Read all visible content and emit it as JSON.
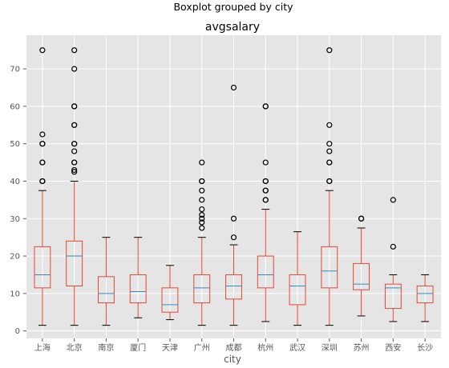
{
  "chart_data": {
    "type": "boxplot",
    "suptitle": "Boxplot grouped by city",
    "title": "avgsalary",
    "xlabel": "city",
    "ylabel": "",
    "ylim": [
      -2,
      79
    ],
    "yticks": [
      0,
      10,
      20,
      30,
      40,
      50,
      60,
      70
    ],
    "grid": true,
    "colors": {
      "background": "#e5e5e5",
      "grid": "#ffffff",
      "box": "#e24a33",
      "median": "#348abd",
      "whisker_cap": "#000000",
      "flier": "#000000",
      "tick_text": "#555555"
    },
    "categories": [
      "上海",
      "北京",
      "南京",
      "厦门",
      "天津",
      "广州",
      "成都",
      "杭州",
      "武汉",
      "深圳",
      "苏州",
      "西安",
      "长沙"
    ],
    "boxes": [
      {
        "city": "上海",
        "whislo": 1.5,
        "q1": 11.5,
        "med": 15,
        "q3": 22.5,
        "whishi": 37.5,
        "fliers": [
          40,
          40,
          45,
          45,
          50,
          50,
          52.5,
          75
        ]
      },
      {
        "city": "北京",
        "whislo": 1.5,
        "q1": 12,
        "med": 20,
        "q3": 24,
        "whishi": 40,
        "fliers": [
          42.5,
          43,
          45,
          45,
          48,
          50,
          50,
          55,
          55,
          60,
          60,
          70,
          75
        ]
      },
      {
        "city": "南京",
        "whislo": 1.5,
        "q1": 7.5,
        "med": 10,
        "q3": 14.5,
        "whishi": 25,
        "fliers": []
      },
      {
        "city": "厦门",
        "whislo": 3.5,
        "q1": 7.5,
        "med": 10.5,
        "q3": 15,
        "whishi": 25,
        "fliers": []
      },
      {
        "city": "天津",
        "whislo": 3,
        "q1": 5,
        "med": 7,
        "q3": 11.5,
        "whishi": 17.5,
        "fliers": []
      },
      {
        "city": "广州",
        "whislo": 1.5,
        "q1": 7.5,
        "med": 11.5,
        "q3": 15,
        "whishi": 25,
        "fliers": [
          27.5,
          29,
          30,
          31,
          32.5,
          35,
          37.5,
          40,
          40,
          45
        ]
      },
      {
        "city": "成都",
        "whislo": 1.5,
        "q1": 8.5,
        "med": 12,
        "q3": 15,
        "whishi": 23,
        "fliers": [
          25,
          30,
          65
        ]
      },
      {
        "city": "杭州",
        "whislo": 2.5,
        "q1": 11.5,
        "med": 15,
        "q3": 20,
        "whishi": 32.5,
        "fliers": [
          35,
          35,
          37.5,
          37.5,
          40,
          40,
          45,
          60,
          60
        ]
      },
      {
        "city": "武汉",
        "whislo": 1.5,
        "q1": 7,
        "med": 12,
        "q3": 15,
        "whishi": 26.5,
        "fliers": []
      },
      {
        "city": "深圳",
        "whislo": 1.5,
        "q1": 11.5,
        "med": 16,
        "q3": 22.5,
        "whishi": 37.5,
        "fliers": [
          40,
          40,
          45,
          45,
          48,
          50,
          55,
          75
        ]
      },
      {
        "city": "苏州",
        "whislo": 4,
        "q1": 11,
        "med": 12.5,
        "q3": 18,
        "whishi": 27.5,
        "fliers": [
          30,
          30
        ]
      },
      {
        "city": "西安",
        "whislo": 2.5,
        "q1": 6,
        "med": 11.5,
        "q3": 12.5,
        "whishi": 15,
        "fliers": [
          22.5,
          35
        ]
      },
      {
        "city": "长沙",
        "whislo": 2.5,
        "q1": 7.5,
        "med": 10,
        "q3": 12,
        "whishi": 15,
        "fliers": []
      }
    ]
  }
}
